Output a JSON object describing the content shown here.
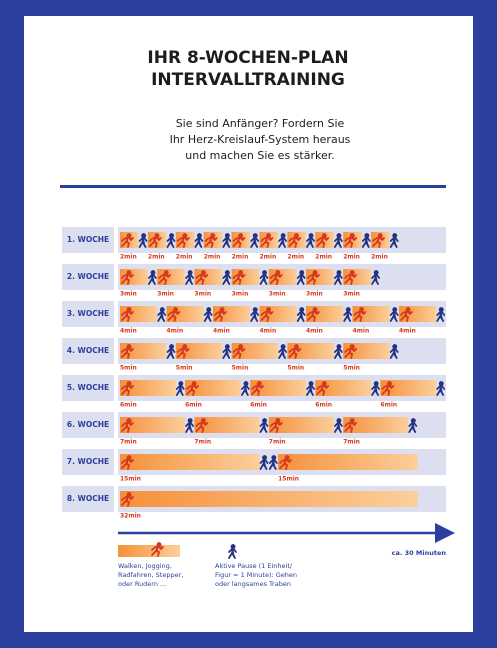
{
  "header": {
    "title": [
      "IHR 8-WOCHEN-PLAN",
      "INTERVALLTRAINING"
    ],
    "subtitle": [
      "Sie sind Anfänger? Fordern Sie",
      "Ihr Herz-Kreislauf-System heraus",
      "und machen Sie es stärker."
    ]
  },
  "weeks": [
    {
      "label": "1. WOCHE",
      "intervals": [
        "2min",
        "2min",
        "2min",
        "2min",
        "2min",
        "2min",
        "2min",
        "2min",
        "2min",
        "2min"
      ]
    },
    {
      "label": "2. WOCHE",
      "intervals": [
        "3min",
        "3min",
        "3min",
        "3min",
        "3min",
        "3min",
        "3min"
      ]
    },
    {
      "label": "3. WOCHE",
      "intervals": [
        "4min",
        "4min",
        "4min",
        "4min",
        "4min",
        "4min",
        "4min"
      ]
    },
    {
      "label": "4. WOCHE",
      "intervals": [
        "5min",
        "5min",
        "5min",
        "5min",
        "5min"
      ]
    },
    {
      "label": "5. WOCHE",
      "intervals": [
        "6min",
        "6min",
        "6min",
        "6min",
        "6min"
      ]
    },
    {
      "label": "6. WOCHE",
      "intervals": [
        "7min",
        "7min",
        "7min",
        "7min"
      ]
    },
    {
      "label": "7. WOCHE",
      "intervals": [
        "15min",
        "15min"
      ]
    },
    {
      "label": "8. WOCHE",
      "intervals": [
        "32min"
      ]
    }
  ],
  "axis": {
    "label": "ca. 30 Minuten"
  },
  "legend": {
    "run": [
      "Walken, Jogging,",
      "Radfahren, Stepper,",
      "oder Rudern ..."
    ],
    "walk": [
      "Aktive Pause (1 Einheit/",
      "Figur = 1 Minute): Gehen",
      "oder langsames Traben"
    ]
  }
}
